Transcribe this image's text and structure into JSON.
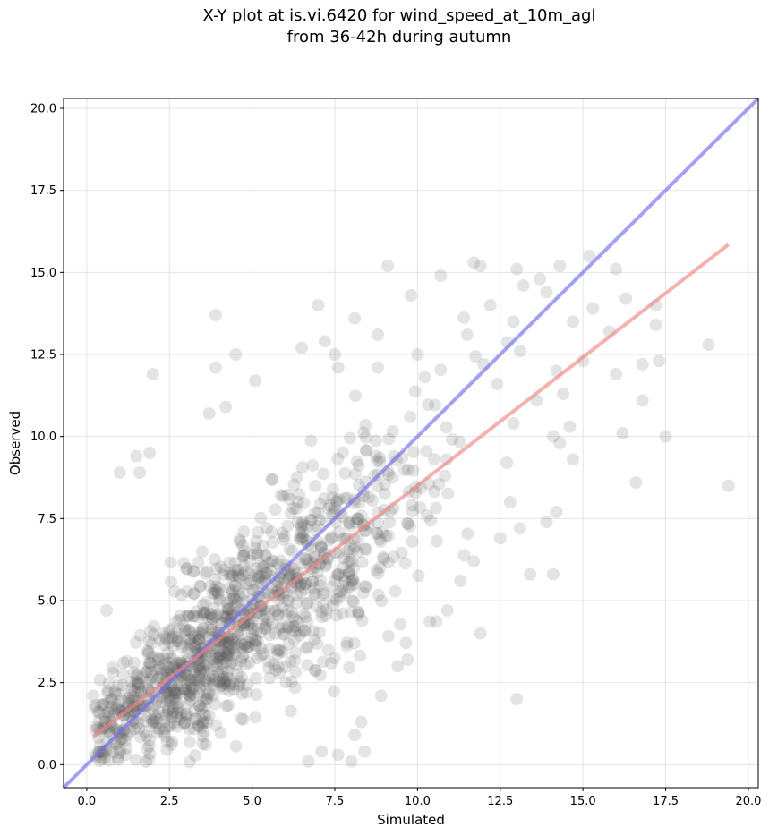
{
  "chart_data": {
    "type": "scatter",
    "title_line1": "X-Y plot at is.vi.6420 for wind_speed_at_10m_agl",
    "title_line2": "from 36-42h during autumn",
    "xlabel": "Simulated",
    "ylabel": "Observed",
    "xlim": [
      -0.7,
      20.3
    ],
    "ylim": [
      -0.7,
      20.3
    ],
    "xticks": [
      0.0,
      2.5,
      5.0,
      7.5,
      10.0,
      12.5,
      15.0,
      17.5,
      20.0
    ],
    "yticks": [
      0.0,
      2.5,
      5.0,
      7.5,
      10.0,
      12.5,
      15.0,
      17.5,
      20.0
    ],
    "xtick_labels": [
      "0.0",
      "2.5",
      "5.0",
      "7.5",
      "10.0",
      "12.5",
      "15.0",
      "17.5",
      "20.0"
    ],
    "ytick_labels": [
      "0.0",
      "2.5",
      "5.0",
      "7.5",
      "10.0",
      "12.5",
      "15.0",
      "17.5",
      "20.0"
    ],
    "grid": true,
    "point_color": "#555555",
    "points": [
      [
        1.0,
        8.9
      ],
      [
        2.0,
        11.9
      ],
      [
        3.9,
        13.7
      ],
      [
        3.9,
        12.1
      ],
      [
        4.5,
        12.5
      ],
      [
        9.1,
        15.2
      ],
      [
        11.7,
        15.3
      ],
      [
        11.9,
        15.2
      ],
      [
        15.2,
        15.5
      ],
      [
        16.0,
        15.1
      ],
      [
        14.3,
        15.2
      ],
      [
        13.0,
        15.1
      ],
      [
        12.9,
        13.5
      ],
      [
        13.2,
        14.6
      ],
      [
        12.2,
        14.0
      ],
      [
        10.7,
        14.9
      ],
      [
        9.8,
        14.3
      ],
      [
        7.0,
        14.0
      ],
      [
        10.0,
        12.5
      ],
      [
        11.5,
        13.1
      ],
      [
        12.0,
        12.2
      ],
      [
        13.1,
        12.6
      ],
      [
        13.7,
        14.8
      ],
      [
        13.9,
        14.4
      ],
      [
        15.8,
        13.2
      ],
      [
        16.3,
        14.2
      ],
      [
        17.2,
        14.0
      ],
      [
        17.2,
        13.4
      ],
      [
        17.3,
        12.3
      ],
      [
        16.8,
        12.2
      ],
      [
        16.0,
        11.9
      ],
      [
        15.0,
        12.3
      ],
      [
        14.7,
        13.5
      ],
      [
        14.2,
        12.0
      ],
      [
        14.4,
        11.3
      ],
      [
        14.6,
        10.3
      ],
      [
        14.7,
        9.3
      ],
      [
        14.1,
        10.0
      ],
      [
        14.3,
        9.8
      ],
      [
        16.2,
        10.1
      ],
      [
        16.8,
        11.1
      ],
      [
        17.5,
        10.0
      ],
      [
        18.8,
        12.8
      ],
      [
        19.4,
        8.5
      ],
      [
        16.6,
        8.6
      ],
      [
        14.2,
        7.7
      ],
      [
        13.9,
        7.4
      ],
      [
        13.4,
        5.8
      ],
      [
        13.0,
        2.0
      ],
      [
        14.1,
        5.8
      ],
      [
        11.9,
        4.0
      ],
      [
        10.9,
        4.7
      ],
      [
        8.9,
        2.1
      ],
      [
        9.7,
        3.2
      ],
      [
        9.4,
        3.0
      ],
      [
        8.1,
        0.9
      ],
      [
        8.0,
        0.1
      ],
      [
        8.4,
        0.4
      ],
      [
        8.3,
        1.3
      ],
      [
        6.7,
        0.1
      ],
      [
        7.1,
        0.4
      ],
      [
        7.6,
        0.3
      ],
      [
        12.5,
        6.9
      ],
      [
        11.7,
        6.2
      ],
      [
        11.3,
        5.6
      ],
      [
        12.8,
        8.0
      ],
      [
        13.1,
        7.2
      ],
      [
        12.7,
        9.2
      ],
      [
        12.9,
        10.4
      ],
      [
        12.4,
        11.6
      ],
      [
        13.6,
        11.1
      ],
      [
        15.3,
        13.9
      ],
      [
        7.6,
        12.1
      ],
      [
        7.2,
        12.9
      ],
      [
        7.5,
        12.5
      ],
      [
        8.8,
        12.1
      ],
      [
        8.8,
        13.1
      ],
      [
        8.1,
        13.6
      ],
      [
        6.5,
        12.7
      ],
      [
        5.1,
        11.7
      ],
      [
        1.5,
        9.4
      ],
      [
        1.6,
        8.9
      ],
      [
        1.9,
        9.5
      ],
      [
        0.6,
        4.7
      ],
      [
        0.2,
        2.1
      ],
      [
        3.7,
        10.7
      ],
      [
        4.2,
        10.9
      ]
    ],
    "series": [
      {
        "name": "",
        "line": "identity",
        "color": "#6f6ff0",
        "start": [
          -0.7,
          -0.7
        ],
        "end": [
          20.3,
          20.3
        ]
      },
      {
        "name": "",
        "line": "fit",
        "color": "#f08585",
        "start": [
          0.2,
          0.85
        ],
        "end": [
          19.4,
          15.85
        ]
      }
    ]
  }
}
